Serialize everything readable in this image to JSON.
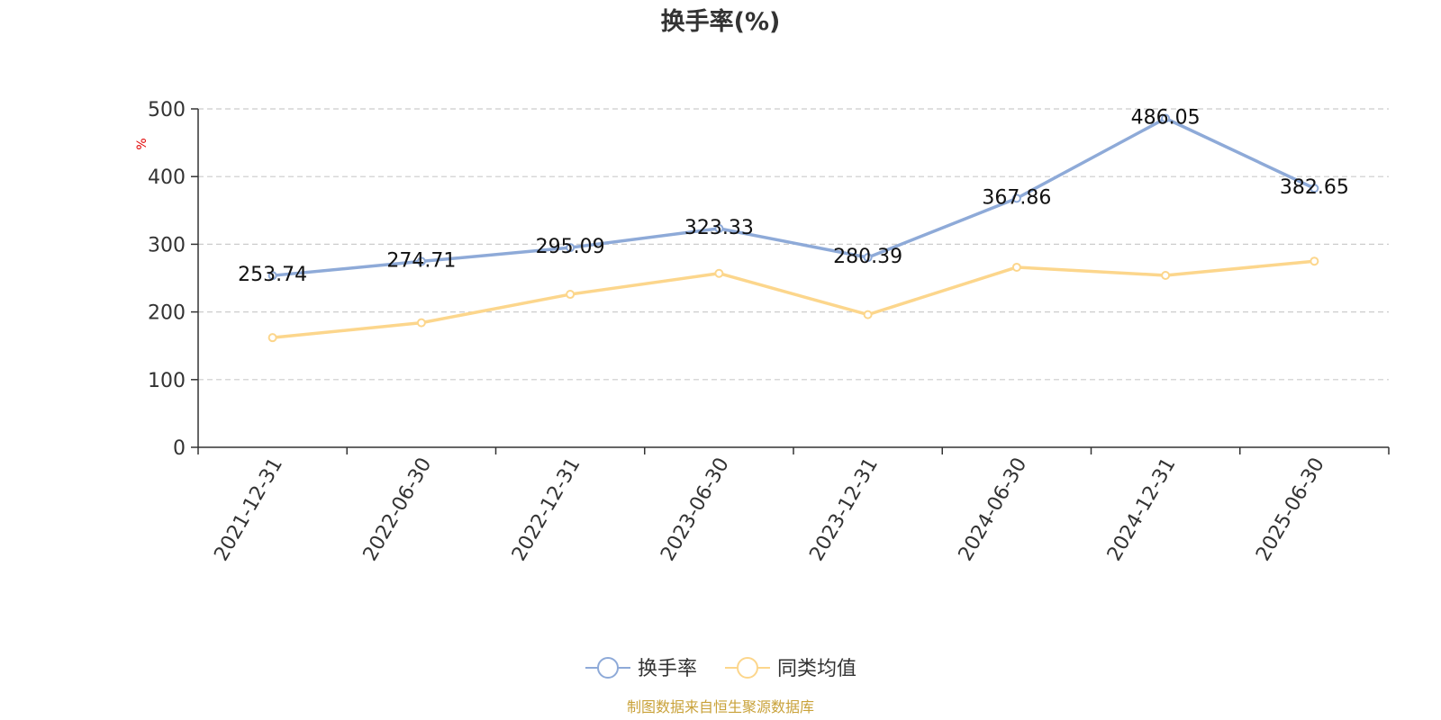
{
  "chart_data": {
    "type": "line",
    "title": "换手率(%)",
    "y_unit": "%",
    "categories": [
      "2021-12-31",
      "2022-06-30",
      "2022-12-31",
      "2023-06-30",
      "2023-12-31",
      "2024-06-30",
      "2024-12-31",
      "2025-06-30"
    ],
    "series": [
      {
        "name": "换手率",
        "color": "#8eaad8",
        "values": [
          253.74,
          274.71,
          295.09,
          323.33,
          280.39,
          367.86,
          486.05,
          382.65
        ],
        "show_labels": true,
        "labels": [
          "253.74",
          "274.71",
          "295.09",
          "323.33",
          "280.39",
          "367.86",
          "486.05",
          "382.65"
        ]
      },
      {
        "name": "同类均值",
        "color": "#fcd68c",
        "values": [
          162,
          184,
          226,
          257,
          196,
          266,
          254,
          275
        ],
        "show_labels": false
      }
    ],
    "ylim": [
      0,
      500
    ],
    "yticks": [
      0,
      100,
      200,
      300,
      400,
      500
    ],
    "grid": true,
    "legend_position": "bottom"
  },
  "source": "制图数据来自恒生聚源数据库"
}
